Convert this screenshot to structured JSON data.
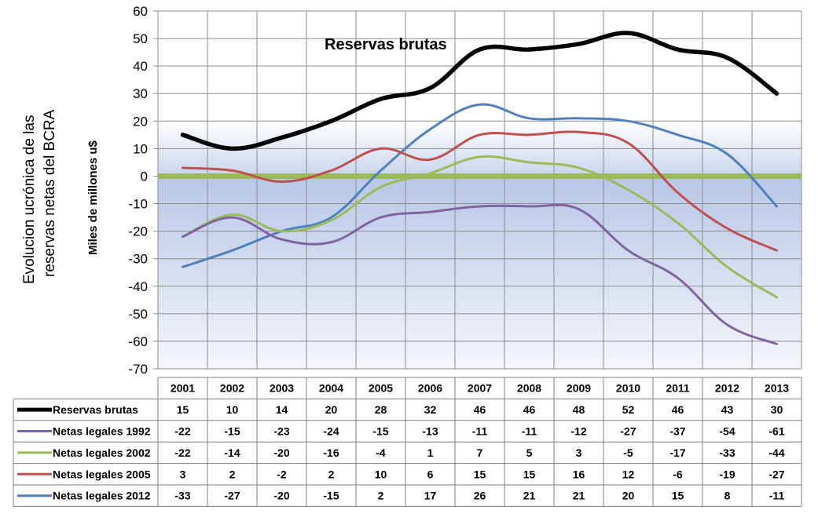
{
  "chart_data": {
    "type": "line",
    "title_line1": "Evolucion ucrónica  de las",
    "title_line2": "reservas netas del BCRA",
    "ylabel": "Miles  de  millones  u$",
    "annotation": "Reservas brutas",
    "ylim": [
      -70,
      60
    ],
    "ytick_step": 10,
    "categories": [
      "2001",
      "2002",
      "2003",
      "2004",
      "2005",
      "2006",
      "2007",
      "2008",
      "2009",
      "2010",
      "2011",
      "2012",
      "2013"
    ],
    "zero_line_color": "#9bbb59",
    "series": [
      {
        "name": "Reservas brutas",
        "color": "#000000",
        "width": 5.5,
        "values": [
          15,
          10,
          14,
          20,
          28,
          32,
          46,
          46,
          48,
          52,
          46,
          43,
          30
        ]
      },
      {
        "name": "Netas legales 1992",
        "color": "#8064a2",
        "width": 3,
        "values": [
          -22,
          -15,
          -23,
          -24,
          -15,
          -13,
          -11,
          -11,
          -12,
          -27,
          -37,
          -54,
          -61
        ]
      },
      {
        "name": "Netas legales 2002",
        "color": "#9bbb59",
        "width": 3,
        "values": [
          -22,
          -14,
          -20,
          -16,
          -4,
          1,
          7,
          5,
          3,
          -5,
          -17,
          -33,
          -44
        ]
      },
      {
        "name": "Netas legales 2005",
        "color": "#c0504d",
        "width": 3,
        "values": [
          3,
          2,
          -2,
          2,
          10,
          6,
          15,
          15,
          16,
          12,
          -6,
          -19,
          -27
        ]
      },
      {
        "name": "Netas legales 2012",
        "color": "#4f81bd",
        "width": 3,
        "values": [
          -33,
          -27,
          -20,
          -15,
          2,
          17,
          26,
          21,
          21,
          20,
          15,
          8,
          -11
        ]
      }
    ]
  }
}
